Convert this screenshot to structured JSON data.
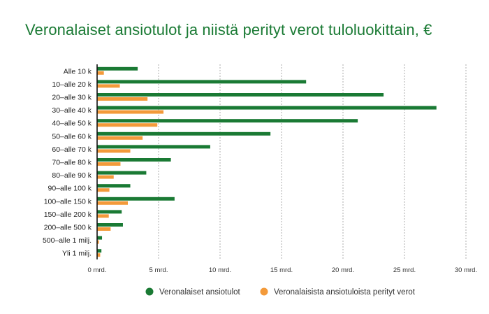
{
  "chart_data": {
    "type": "bar",
    "orientation": "horizontal",
    "title": "Veronalaiset ansiotulot ja niistä perityt verot tuloluokittain, €",
    "categories": [
      "Alle 10 k",
      "10–alle 20 k",
      "20–alle 30 k",
      "30–alle 40 k",
      "40–alle 50 k",
      "50–alle 60 k",
      "60–alle 70 k",
      "70–alle 80 k",
      "80–alle 90 k",
      "90–alle 100 k",
      "100–alle 150 k",
      "150–alle 200 k",
      "200–alle 500 k",
      "500–alle 1 milj.",
      "Yli 1 milj."
    ],
    "series": [
      {
        "name": "Veronalaiset ansiotulot",
        "color": "#1a7a34",
        "values": [
          3.3,
          17.0,
          23.3,
          27.6,
          21.2,
          14.1,
          9.2,
          6.0,
          4.0,
          2.7,
          6.3,
          2.0,
          2.1,
          0.4,
          0.35
        ]
      },
      {
        "name": "Veronalaisista ansiotuloista perityt verot",
        "color": "#f39a3a",
        "values": [
          0.55,
          1.85,
          4.1,
          5.4,
          4.9,
          3.7,
          2.7,
          1.9,
          1.35,
          1.0,
          2.5,
          0.95,
          1.1,
          0.15,
          0.25
        ]
      }
    ],
    "xticks": [
      "0 mrd.",
      "5 mrd.",
      "10 mrd.",
      "15 mrd.",
      "20 mrd.",
      "25 mrd.",
      "30 mrd."
    ],
    "xlim": [
      0,
      30
    ],
    "grid": true,
    "legend_position": "bottom"
  }
}
